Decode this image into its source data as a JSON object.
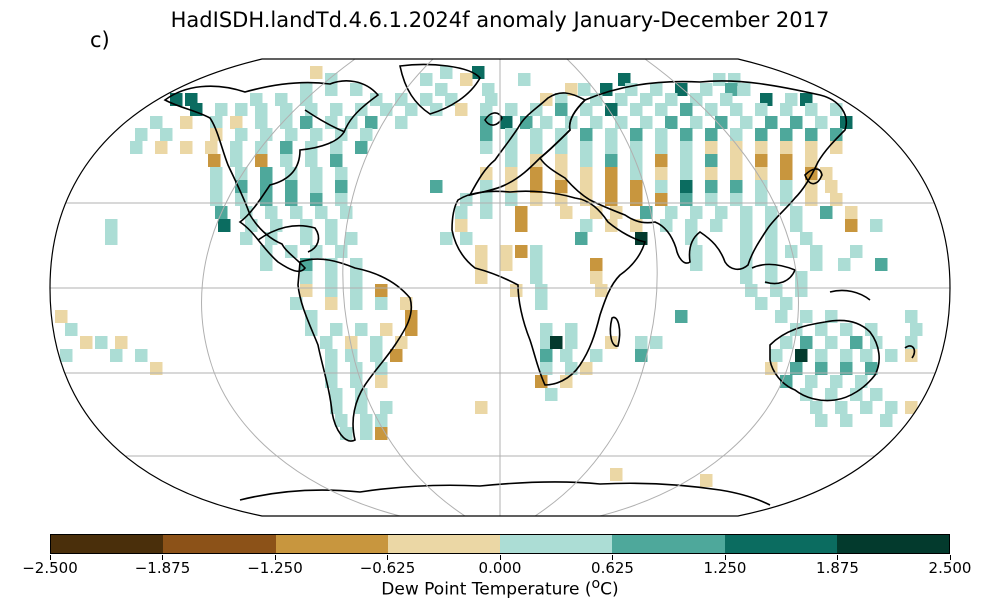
{
  "title": "HadISDH.landTd.4.6.1.2024f anomaly January-December 2017",
  "panel_label": "c)",
  "colorbar": {
    "label_pre": "Dew Point Temperature (",
    "label_unit_sup": "o",
    "label_post": "C)",
    "ticks": [
      "−2.500",
      "−1.875",
      "−1.250",
      "−0.625",
      "0.000",
      "0.625",
      "1.250",
      "1.875",
      "2.500"
    ],
    "colors": [
      "#4a2f0b",
      "#8c5218",
      "#c8963e",
      "#ebd7a5",
      "#acddd5",
      "#4ea89b",
      "#0b6c60",
      "#033a2d"
    ]
  },
  "map": {
    "projection": "Robinson",
    "grid": true,
    "category_colors": {
      "light_brown": "#ebd7a5",
      "mid_brown": "#c8963e",
      "light_teal": "#acddd5",
      "mid_teal": "#4ea89b",
      "dark_teal": "#0b6c60",
      "darkest_teal": "#033a2d"
    }
  }
}
